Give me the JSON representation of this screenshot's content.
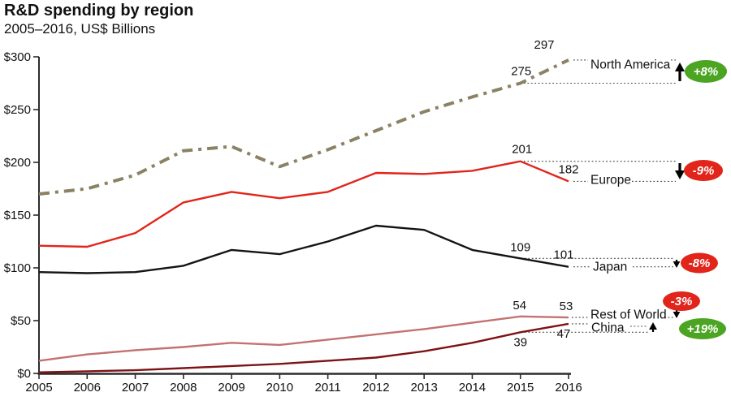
{
  "title": "R&D spending by region",
  "subtitle": "2005–2016, US$ Billions",
  "chart_data": {
    "type": "line",
    "x_tick_labels": [
      "2005",
      "2006",
      "2007",
      "2008",
      "2009",
      "2010",
      "2011",
      "2012",
      "2013",
      "2014",
      "2015",
      "2016"
    ],
    "y_ticks": [
      0,
      50,
      100,
      150,
      200,
      250,
      300
    ],
    "y_tick_labels": [
      "$0",
      "$50",
      "$100",
      "$150",
      "$200",
      "$250",
      "$300"
    ],
    "ylim": [
      0,
      300
    ],
    "grid": false,
    "legend_position": "right-inline-labels",
    "series": [
      {
        "name": "North America",
        "values": [
          170,
          175,
          188,
          211,
          215,
          196,
          212,
          230,
          248,
          262,
          275,
          297
        ],
        "color": "#8b8265",
        "line_style": "dash-dot",
        "end_value_labels": [
          "275",
          "297"
        ],
        "change_label": "+8%",
        "change_direction": "up",
        "change_badge_color": "#4ba522"
      },
      {
        "name": "Europe",
        "values": [
          121,
          120,
          133,
          162,
          172,
          166,
          172,
          190,
          189,
          192,
          201,
          182
        ],
        "color": "#e2251b",
        "line_style": "solid",
        "end_value_labels": [
          "201",
          "182"
        ],
        "change_label": "-9%",
        "change_direction": "down",
        "change_badge_color": "#e2251b"
      },
      {
        "name": "Japan",
        "values": [
          96,
          95,
          96,
          102,
          117,
          113,
          125,
          140,
          136,
          117,
          109,
          101
        ],
        "color": "#141414",
        "line_style": "solid",
        "end_value_labels": [
          "109",
          "101"
        ],
        "change_label": "-8%",
        "change_direction": "down",
        "change_badge_color": "#e2251b"
      },
      {
        "name": "Rest of World",
        "values": [
          12,
          18,
          22,
          25,
          29,
          27,
          32,
          37,
          42,
          48,
          54,
          53
        ],
        "color": "#c47171",
        "line_style": "solid",
        "end_value_labels": [
          "54",
          "53"
        ],
        "change_label": "-3%",
        "change_direction": "down",
        "change_badge_color": "#e2251b"
      },
      {
        "name": "China",
        "values": [
          1,
          2,
          3,
          5,
          7,
          9,
          12,
          15,
          21,
          29,
          39,
          47
        ],
        "color": "#7e1215",
        "line_style": "solid",
        "end_value_labels": [
          "39",
          "47"
        ],
        "change_label": "+19%",
        "change_direction": "up",
        "change_badge_color": "#4ba522"
      }
    ],
    "text_color": "#111111",
    "axis_color": "#2c2c2c"
  }
}
